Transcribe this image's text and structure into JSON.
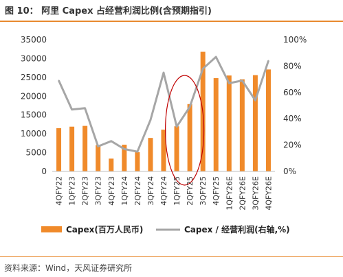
{
  "title": "图 10：  阿里 Capex 占经营利润比例(含预期指引)",
  "source": "资料来源：Wind，天风证券研究所",
  "chart_data": {
    "type": "bar+line",
    "categories": [
      "4QFY22",
      "1QFY23",
      "2QFY23",
      "3QFY23",
      "4QFY23",
      "1QFY24",
      "2QFY24",
      "3QFY24",
      "4QFY24",
      "1QFY25",
      "2QFY25",
      "3QFY25",
      "4QFY25",
      "1QFY26E",
      "2QFY26E",
      "3QFY26E",
      "4QFY26E"
    ],
    "bar_series": {
      "name": "Capex(百万人民币)",
      "axis": "left",
      "values": [
        11500,
        11900,
        12100,
        7000,
        3400,
        7100,
        5100,
        8900,
        11100,
        12000,
        17900,
        31800,
        24800,
        25500,
        24500,
        25600,
        27100
      ]
    },
    "line_series": {
      "name": "Capex / 经营利润(右轴,%)",
      "axis": "right",
      "values": [
        69,
        47,
        48,
        19,
        23,
        17,
        15,
        39,
        75,
        34,
        49,
        78,
        87,
        67,
        69,
        54,
        84
      ]
    },
    "left_axis": {
      "min": 0,
      "max": 35000,
      "ticks": [
        "0",
        "5000",
        "10000",
        "15000",
        "20000",
        "25000",
        "30000",
        "35000"
      ]
    },
    "right_axis": {
      "min": 0,
      "max": 100,
      "ticks": [
        "0%",
        "20%",
        "40%",
        "60%",
        "80%",
        "100%"
      ]
    },
    "colors": {
      "bar": "#f08a2a",
      "line": "#a6a6a6",
      "highlight": "#c00000",
      "accent": "#e8892f"
    },
    "annotation": "ellipse highlighting 1QFY25–2QFY26",
    "legend_position": "bottom"
  }
}
